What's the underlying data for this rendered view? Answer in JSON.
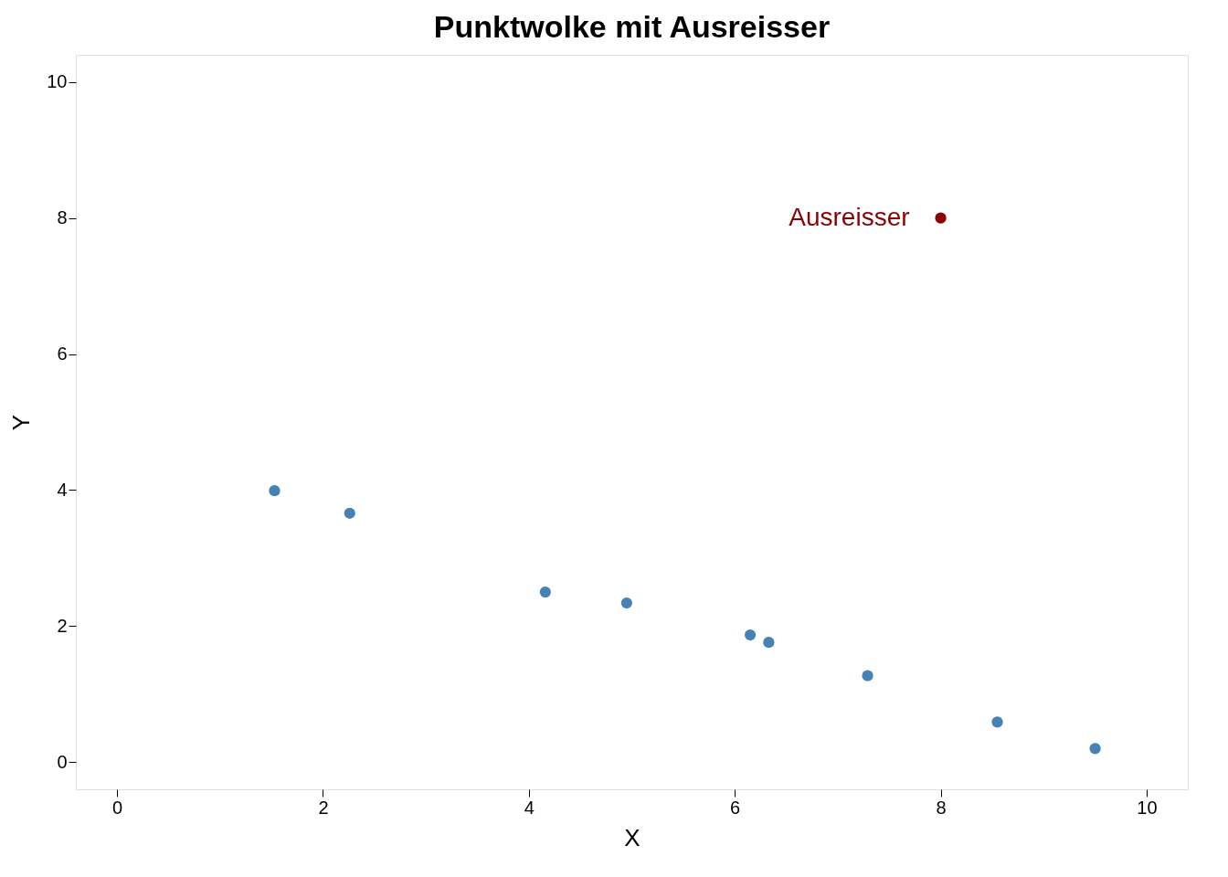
{
  "chart_data": {
    "type": "scatter",
    "title": "Punktwolke mit Ausreisser",
    "xlabel": "X",
    "ylabel": "Y",
    "xlim": [
      -0.4,
      10.4
    ],
    "ylim": [
      -0.4,
      10.4
    ],
    "xticks": [
      0,
      2,
      4,
      6,
      8,
      10
    ],
    "yticks": [
      0,
      2,
      4,
      6,
      8,
      10
    ],
    "grid": false,
    "legend": false,
    "marker": "circle",
    "series": [
      {
        "color": "#4682b4",
        "x": [
          1.53,
          2.26,
          4.16,
          4.95,
          6.15,
          6.33,
          7.29,
          8.55,
          9.5
        ],
        "values": [
          3.99,
          3.66,
          2.5,
          2.34,
          1.87,
          1.76,
          1.27,
          0.59,
          0.2
        ]
      },
      {
        "color": "#8b0000",
        "x": [
          8.0
        ],
        "values": [
          8.0
        ]
      }
    ],
    "annotations": [
      {
        "text": "Ausreisser",
        "x": 8.0,
        "y": 8.0
      }
    ]
  }
}
